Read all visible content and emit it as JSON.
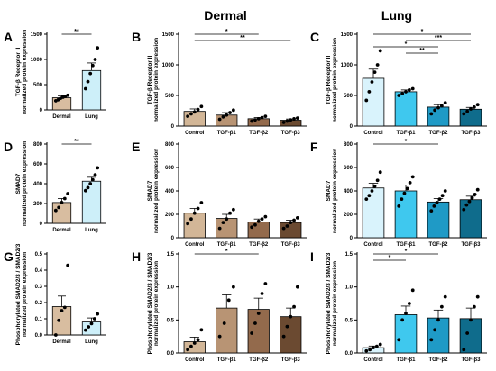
{
  "figure": {
    "dermal_label": "Dermal",
    "lung_label": "Lung"
  },
  "chart_data": [
    {
      "panel": "A",
      "type": "bar",
      "ylabel": "TGF-β Receptor II",
      "ylabel2": "normalized protein expression",
      "ylim": [
        0,
        1500
      ],
      "yticks": [
        0,
        500,
        1000,
        1500
      ],
      "categories": [
        "Dermal",
        "Lung"
      ],
      "values": [
        240,
        780
      ],
      "errors": [
        40,
        150
      ],
      "colors": [
        "#d8bda0",
        "#cdeff9"
      ],
      "points": [
        [
          180,
          200,
          230,
          250,
          270,
          290
        ],
        [
          420,
          560,
          720,
          880,
          1000,
          1230
        ]
      ],
      "significance": [
        {
          "from": 0,
          "to": 1,
          "label": "**"
        }
      ]
    },
    {
      "panel": "B",
      "type": "bar",
      "ylabel": "TGF-β Receptor II",
      "ylabel2": "normalized protein expression",
      "ylim": [
        0,
        1500
      ],
      "yticks": [
        0,
        500,
        1000,
        1500
      ],
      "categories": [
        "Control",
        "TGF-β1",
        "TGF-β2",
        "TGF-β3"
      ],
      "values": [
        240,
        180,
        120,
        95
      ],
      "errors": [
        40,
        40,
        20,
        20
      ],
      "colors": [
        "#d2b697",
        "#b89474",
        "#936a4c",
        "#6b4a31"
      ],
      "points": [
        [
          160,
          200,
          230,
          270,
          320
        ],
        [
          110,
          150,
          180,
          220,
          260
        ],
        [
          80,
          100,
          120,
          140,
          160
        ],
        [
          60,
          80,
          100,
          120,
          130
        ]
      ],
      "significance": [
        {
          "from": 0,
          "to": 2,
          "label": "*"
        },
        {
          "from": 0,
          "to": 3,
          "label": "**"
        }
      ]
    },
    {
      "panel": "C",
      "type": "bar",
      "ylabel": "TGF-β Receptor II",
      "ylabel2": "normalized protein expression",
      "ylim": [
        0,
        1500
      ],
      "yticks": [
        0,
        500,
        1000,
        1500
      ],
      "categories": [
        "Control",
        "TGF-β1",
        "TGF-β2",
        "TGF-β3"
      ],
      "values": [
        780,
        560,
        310,
        275
      ],
      "errors": [
        150,
        30,
        40,
        30
      ],
      "colors": [
        "#d9f3fc",
        "#3fc8ee",
        "#1f9ac6",
        "#0f6c8c"
      ],
      "points": [
        [
          420,
          560,
          720,
          880,
          1000,
          1230
        ],
        [
          500,
          530,
          560,
          590,
          610
        ],
        [
          200,
          260,
          300,
          330,
          380
        ],
        [
          200,
          240,
          280,
          310,
          350
        ]
      ],
      "significance": [
        {
          "from": 0,
          "to": 3,
          "label": "*"
        },
        {
          "from": 1,
          "to": 3,
          "label": "***"
        },
        {
          "from": 0,
          "to": 2,
          "label": "*"
        },
        {
          "from": 1,
          "to": 2,
          "label": "**"
        }
      ]
    },
    {
      "panel": "D",
      "type": "bar",
      "ylabel": "SMAD7",
      "ylabel2": "normalized protein expression",
      "ylim": [
        0,
        800
      ],
      "yticks": [
        0,
        200,
        400,
        600,
        800
      ],
      "categories": [
        "Dermal",
        "Lung"
      ],
      "values": [
        210,
        425
      ],
      "errors": [
        40,
        40
      ],
      "colors": [
        "#d8bda0",
        "#cdeff9"
      ],
      "points": [
        [
          130,
          160,
          210,
          250,
          300
        ],
        [
          330,
          360,
          400,
          440,
          490,
          560
        ]
      ],
      "significance": [
        {
          "from": 0,
          "to": 1,
          "label": "**"
        }
      ]
    },
    {
      "panel": "E",
      "type": "bar",
      "ylabel": "SMAD7",
      "ylabel2": "normalized protein expression",
      "ylim": [
        0,
        800
      ],
      "yticks": [
        0,
        200,
        400,
        600,
        800
      ],
      "categories": [
        "Control",
        "TGF-β1",
        "TGF-β2",
        "TGF-β3"
      ],
      "values": [
        210,
        165,
        135,
        130
      ],
      "errors": [
        40,
        35,
        25,
        20
      ],
      "colors": [
        "#d2b697",
        "#b89474",
        "#936a4c",
        "#6b4a31"
      ],
      "points": [
        [
          120,
          160,
          210,
          250,
          300
        ],
        [
          80,
          130,
          160,
          210,
          240
        ],
        [
          90,
          110,
          140,
          160,
          180
        ],
        [
          80,
          100,
          130,
          150,
          170
        ]
      ],
      "significance": []
    },
    {
      "panel": "F",
      "type": "bar",
      "ylabel": "SMAD7",
      "ylabel2": "normalized protein expression",
      "ylim": [
        0,
        800
      ],
      "yticks": [
        0,
        200,
        400,
        600,
        800
      ],
      "categories": [
        "Control",
        "TGF-β1",
        "TGF-β2",
        "TGF-β3"
      ],
      "values": [
        425,
        400,
        305,
        325
      ],
      "errors": [
        40,
        50,
        30,
        30
      ],
      "colors": [
        "#d9f3fc",
        "#3fc8ee",
        "#1f9ac6",
        "#0f6c8c"
      ],
      "points": [
        [
          330,
          360,
          400,
          440,
          490,
          560
        ],
        [
          270,
          330,
          380,
          420,
          470,
          520
        ],
        [
          230,
          270,
          300,
          330,
          360,
          400
        ],
        [
          240,
          280,
          310,
          340,
          370,
          410
        ]
      ],
      "significance": [
        {
          "from": 0,
          "to": 2,
          "label": "*"
        }
      ]
    },
    {
      "panel": "G",
      "type": "bar",
      "ylabel": "Phosphorylated SMAD2/3 / SMAD2/3",
      "ylabel2": "normalized protein expression",
      "ylim": [
        0,
        0.5
      ],
      "yticks": [
        0.0,
        0.1,
        0.2,
        0.3,
        0.4,
        0.5
      ],
      "categories": [
        "Dermal",
        "Lung"
      ],
      "values": [
        0.175,
        0.08
      ],
      "errors": [
        0.065,
        0.025
      ],
      "colors": [
        "#d8bda0",
        "#cdeff9"
      ],
      "points": [
        [
          0.0,
          0.09,
          0.15,
          0.17,
          0.43
        ],
        [
          0.03,
          0.05,
          0.07,
          0.1,
          0.13
        ]
      ],
      "significance": []
    },
    {
      "panel": "H",
      "type": "bar",
      "ylabel": "Phosphorylated SMAD2/3 / SMAD2/3",
      "ylabel2": "normalized protein expression",
      "ylim": [
        0,
        1.5
      ],
      "yticks": [
        0.0,
        0.5,
        1.0,
        1.5
      ],
      "categories": [
        "Control",
        "TGF-β1",
        "TGF-β2",
        "TGF-β3"
      ],
      "values": [
        0.17,
        0.68,
        0.66,
        0.55
      ],
      "errors": [
        0.07,
        0.2,
        0.17,
        0.13
      ],
      "colors": [
        "#d2b697",
        "#b89474",
        "#936a4c",
        "#6b4a31"
      ],
      "points": [
        [
          0.05,
          0.1,
          0.15,
          0.2,
          0.35
        ],
        [
          0.25,
          0.45,
          0.8,
          1.0
        ],
        [
          0.3,
          0.45,
          0.6,
          0.9,
          1.05
        ],
        [
          0.25,
          0.4,
          0.55,
          0.7,
          1.0
        ]
      ],
      "significance": [
        {
          "from": 0,
          "to": 2,
          "label": "*"
        }
      ]
    },
    {
      "panel": "I",
      "type": "bar",
      "ylabel": "Phosphorylated SMAD2/3 / SMAD2/3",
      "ylabel2": "normalized protein expression",
      "ylim": [
        0,
        1.5
      ],
      "yticks": [
        0.0,
        0.5,
        1.0,
        1.5
      ],
      "categories": [
        "Control",
        "TGF-β1",
        "TGF-β2",
        "TGF-β3"
      ],
      "values": [
        0.08,
        0.58,
        0.53,
        0.52
      ],
      "errors": [
        0.025,
        0.13,
        0.12,
        0.16
      ],
      "colors": [
        "#d9f3fc",
        "#3fc8ee",
        "#1f9ac6",
        "#0f6c8c"
      ],
      "points": [
        [
          0.03,
          0.05,
          0.08,
          0.1,
          0.13
        ],
        [
          0.2,
          0.5,
          0.6,
          0.75,
          0.95
        ],
        [
          0.2,
          0.35,
          0.5,
          0.7,
          0.85
        ],
        [
          0.05,
          0.3,
          0.5,
          0.7,
          0.85
        ]
      ],
      "significance": [
        {
          "from": 0,
          "to": 2,
          "label": "*"
        },
        {
          "from": 0,
          "to": 1,
          "label": "*"
        }
      ]
    }
  ]
}
